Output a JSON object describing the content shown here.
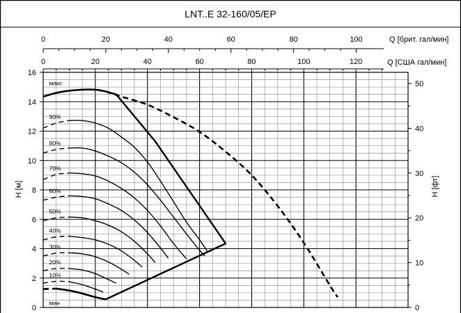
{
  "chart_data": {
    "type": "line",
    "title": "LNT..E 32-160/05/EP",
    "ylabel": "H [м]",
    "y2label": "H [фт]",
    "ylim": [
      0,
      16
    ],
    "y2lim": [
      0,
      52.49
    ],
    "y_ticks": [
      "0",
      "2",
      "4",
      "6",
      "8",
      "10",
      "12",
      "14",
      "16"
    ],
    "y2_ticks": [
      "0",
      "10",
      "20",
      "30",
      "40",
      "50"
    ],
    "x_axis_ukgpm": {
      "label": "Q [брит. гал/мин]",
      "range": [
        0,
        117.5
      ],
      "ticks": [
        "0",
        "20",
        "40",
        "60",
        "80",
        "100"
      ]
    },
    "x_axis_usgpm": {
      "label": "Q [США гал/мин]",
      "range": [
        0,
        140
      ],
      "ticks": [
        "0",
        "20",
        "40",
        "60",
        "80",
        "100",
        "120"
      ]
    },
    "x_unit": "Q [США гал/мин]",
    "series": [
      {
        "name": "макс",
        "dashed_from": 24,
        "points": [
          [
            0,
            14.35
          ],
          [
            5,
            14.6
          ],
          [
            10,
            14.75
          ],
          [
            15,
            14.82
          ],
          [
            20,
            14.82
          ],
          [
            24,
            14.7
          ],
          [
            30,
            14.35
          ],
          [
            40,
            13.8
          ],
          [
            50,
            12.95
          ],
          [
            60,
            11.95
          ],
          [
            70,
            10.6
          ],
          [
            80,
            9.0
          ],
          [
            90,
            6.9
          ],
          [
            100,
            4.4
          ],
          [
            110,
            1.5
          ],
          [
            113,
            0.7
          ]
        ]
      },
      {
        "name": "90%",
        "points": [
          [
            0,
            12.2
          ],
          [
            5,
            12.55
          ],
          [
            10,
            12.72
          ],
          [
            15,
            12.72
          ],
          [
            20,
            12.55
          ],
          [
            25,
            12.2
          ],
          [
            30,
            11.6
          ],
          [
            35,
            10.9
          ],
          [
            40,
            9.9
          ],
          [
            45,
            8.6
          ],
          [
            50,
            7.2
          ],
          [
            55,
            5.8
          ],
          [
            60,
            4.6
          ],
          [
            63,
            3.8
          ]
        ]
      },
      {
        "name": "80%",
        "points": [
          [
            0,
            10.5
          ],
          [
            5,
            10.75
          ],
          [
            10,
            10.85
          ],
          [
            15,
            10.85
          ],
          [
            20,
            10.65
          ],
          [
            25,
            10.3
          ],
          [
            30,
            9.85
          ],
          [
            35,
            9.2
          ],
          [
            40,
            8.35
          ],
          [
            45,
            7.3
          ],
          [
            50,
            6.15
          ],
          [
            55,
            5.0
          ],
          [
            60,
            3.9
          ],
          [
            62,
            3.5
          ]
        ]
      },
      {
        "name": "70%",
        "points": [
          [
            0,
            8.7
          ],
          [
            5,
            9.05
          ],
          [
            10,
            9.15
          ],
          [
            15,
            9.1
          ],
          [
            20,
            8.95
          ],
          [
            25,
            8.6
          ],
          [
            30,
            8.1
          ],
          [
            35,
            7.45
          ],
          [
            40,
            6.6
          ],
          [
            45,
            5.55
          ],
          [
            50,
            4.35
          ],
          [
            55,
            3.3
          ]
        ]
      },
      {
        "name": "60%",
        "points": [
          [
            0,
            7.3
          ],
          [
            5,
            7.5
          ],
          [
            10,
            7.6
          ],
          [
            15,
            7.55
          ],
          [
            20,
            7.4
          ],
          [
            25,
            7.05
          ],
          [
            30,
            6.6
          ],
          [
            35,
            5.95
          ],
          [
            40,
            5.1
          ],
          [
            45,
            4.05
          ],
          [
            48,
            3.35
          ]
        ]
      },
      {
        "name": "50%",
        "points": [
          [
            0,
            5.9
          ],
          [
            5,
            6.1
          ],
          [
            10,
            6.15
          ],
          [
            15,
            6.1
          ],
          [
            20,
            5.9
          ],
          [
            25,
            5.6
          ],
          [
            30,
            5.15
          ],
          [
            35,
            4.5
          ],
          [
            40,
            3.65
          ],
          [
            43,
            3.05
          ]
        ]
      },
      {
        "name": "40%",
        "points": [
          [
            0,
            4.6
          ],
          [
            5,
            4.8
          ],
          [
            10,
            4.85
          ],
          [
            15,
            4.75
          ],
          [
            20,
            4.6
          ],
          [
            25,
            4.3
          ],
          [
            30,
            3.85
          ],
          [
            35,
            3.2
          ],
          [
            38,
            2.75
          ]
        ]
      },
      {
        "name": "30%",
        "points": [
          [
            0,
            3.5
          ],
          [
            5,
            3.7
          ],
          [
            10,
            3.72
          ],
          [
            15,
            3.65
          ],
          [
            20,
            3.45
          ],
          [
            25,
            3.1
          ],
          [
            30,
            2.6
          ],
          [
            33,
            2.25
          ]
        ]
      },
      {
        "name": "20%",
        "points": [
          [
            0,
            2.5
          ],
          [
            5,
            2.65
          ],
          [
            10,
            2.65
          ],
          [
            15,
            2.55
          ],
          [
            20,
            2.3
          ],
          [
            25,
            1.9
          ],
          [
            28,
            1.65
          ]
        ]
      },
      {
        "name": "10%",
        "points": [
          [
            0,
            1.65
          ],
          [
            5,
            1.78
          ],
          [
            10,
            1.75
          ],
          [
            15,
            1.55
          ],
          [
            20,
            1.25
          ],
          [
            23,
            1.05
          ]
        ]
      },
      {
        "name": "мин",
        "dashed_until": 5,
        "points": [
          [
            0,
            1.25
          ],
          [
            5,
            1.28
          ],
          [
            10,
            1.15
          ],
          [
            15,
            0.95
          ],
          [
            20,
            0.7
          ],
          [
            24,
            0.55
          ]
        ]
      }
    ],
    "envelope": [
      [
        24,
        0.55
      ],
      [
        70,
        4.35
      ],
      [
        43,
        11.3
      ],
      [
        28,
        14.5
      ],
      [
        24,
        14.7
      ]
    ],
    "grid": true
  }
}
